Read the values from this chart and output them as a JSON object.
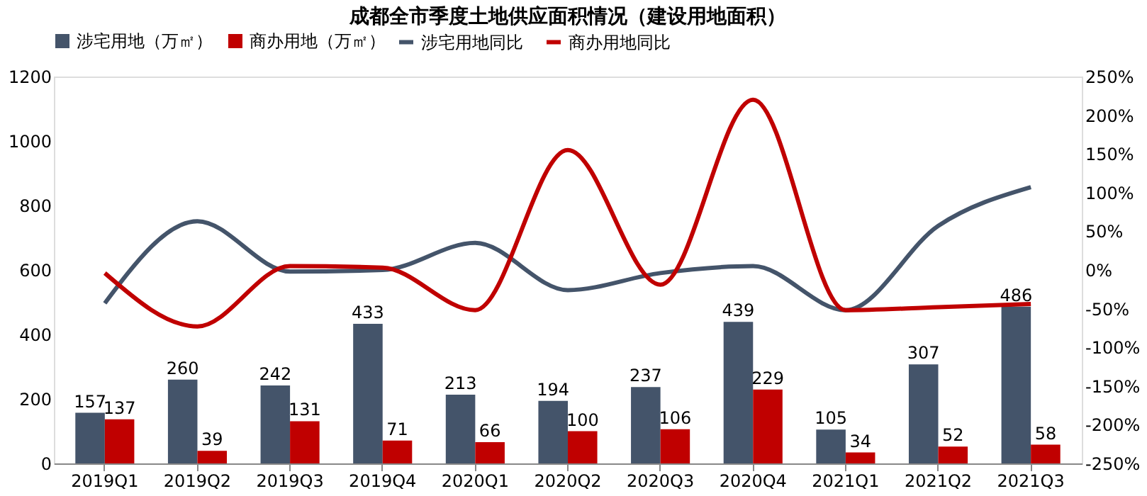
{
  "chart_data": {
    "type": "bar",
    "title": "成都全市季度土地供应面积情况（建设用地面积）",
    "categories": [
      "2019Q1",
      "2019Q2",
      "2019Q3",
      "2019Q4",
      "2020Q1",
      "2020Q2",
      "2020Q3",
      "2020Q4",
      "2021Q1",
      "2021Q2",
      "2021Q3"
    ],
    "series": [
      {
        "name": "涉宅用地（万㎡）",
        "color": "#44546a",
        "values": [
          157,
          260,
          242,
          433,
          213,
          194,
          237,
          439,
          105,
          307,
          486
        ],
        "value_labels": [
          "157",
          "260",
          "242",
          "433",
          "213",
          "194",
          "237",
          "439",
          "105",
          "307",
          "486"
        ]
      },
      {
        "name": "商办用地（万㎡）",
        "color": "#c00000",
        "values": [
          137,
          39,
          131,
          71,
          66,
          100,
          106,
          229,
          34,
          52,
          58
        ],
        "value_labels": [
          "137",
          "39",
          "131",
          "71",
          "66",
          "100",
          "106",
          "229",
          "34",
          "52",
          "58"
        ]
      },
      {
        "name": "涉宅用地同比",
        "type": "line",
        "axis": "y2",
        "color": "#44546a",
        "values": [
          -43,
          63,
          -2,
          0,
          35,
          -26,
          -4,
          5,
          -52,
          57,
          107
        ]
      },
      {
        "name": "商办用地同比",
        "type": "line",
        "axis": "y2",
        "color": "#c00000",
        "values": [
          -4,
          -73,
          5,
          3,
          -52,
          155,
          -19,
          220,
          -52,
          -48,
          -44
        ]
      }
    ],
    "ylim": [
      0,
      1200
    ],
    "yticks": [
      0,
      200,
      400,
      600,
      800,
      1000,
      1200
    ],
    "y2lim": [
      -250,
      250
    ],
    "y2ticks": [
      {
        "value": -250,
        "label": "-250%"
      },
      {
        "value": -200,
        "label": "-200%"
      },
      {
        "value": -150,
        "label": "-150%"
      },
      {
        "value": -100,
        "label": "-100%"
      },
      {
        "value": -50,
        "label": "-50%"
      },
      {
        "value": 0,
        "label": "0%"
      },
      {
        "value": 50,
        "label": "50%"
      },
      {
        "value": 100,
        "label": "100%"
      },
      {
        "value": 150,
        "label": "150%"
      },
      {
        "value": 200,
        "label": "200%"
      },
      {
        "value": 250,
        "label": "250%"
      }
    ],
    "grid": false,
    "legend": "top",
    "line_style": "solid",
    "marker": "none"
  }
}
